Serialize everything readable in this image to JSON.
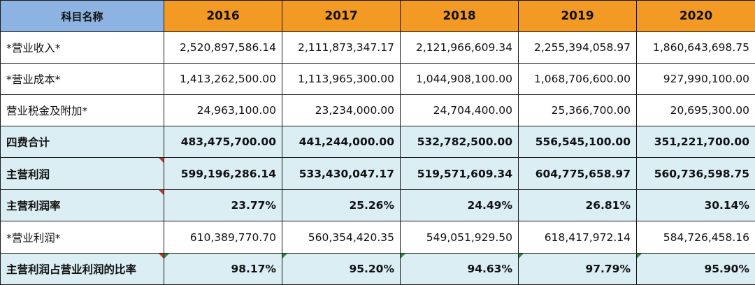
{
  "table": {
    "header_label": "科目名称",
    "years": [
      "2016",
      "2017",
      "2018",
      "2019",
      "2020"
    ],
    "rows": [
      {
        "label": "*营业收入*",
        "values": [
          "2,520,897,586.14",
          "2,111,873,347.17",
          "2,121,966,609.34",
          "2,255,394,058.97",
          "1,860,643,698.75"
        ]
      },
      {
        "label": "*营业成本*",
        "values": [
          "1,413,262,500.00",
          "1,113,965,300.00",
          "1,044,908,100.00",
          "1,068,706,600.00",
          "927,990,100.00"
        ]
      },
      {
        "label": "营业税金及附加*",
        "values": [
          "24,963,100.00",
          "23,234,000.00",
          "24,704,400.00",
          "25,366,700.00",
          "20,695,300.00"
        ]
      },
      {
        "label": "四费合计",
        "values": [
          "483,475,700.00",
          "441,244,000.00",
          "532,782,500.00",
          "556,545,100.00",
          "351,221,700.00"
        ]
      },
      {
        "label": "主营利润",
        "values": [
          "599,196,286.14",
          "533,430,047.17",
          "519,571,609.34",
          "604,775,658.97",
          "560,736,598.75"
        ]
      },
      {
        "label": "主营利润率",
        "values": [
          "23.77%",
          "25.26%",
          "24.49%",
          "26.81%",
          "30.14%"
        ]
      },
      {
        "label": "*营业利润*",
        "values": [
          "610,389,770.70",
          "560,354,420.35",
          "549,051,929.50",
          "618,417,972.14",
          "584,726,458.16"
        ]
      },
      {
        "label": "主营利润占营业利润的比率",
        "values": [
          "98.17%",
          "95.20%",
          "94.63%",
          "97.79%",
          "95.90%"
        ]
      }
    ]
  },
  "colors": {
    "header_label_bg": "#8db3e2",
    "header_year_bg": "#f39a24",
    "highlight_row_bg": "#dbeef4",
    "comment_marker": "#c0392b",
    "error_marker": "#2e8b3a"
  }
}
